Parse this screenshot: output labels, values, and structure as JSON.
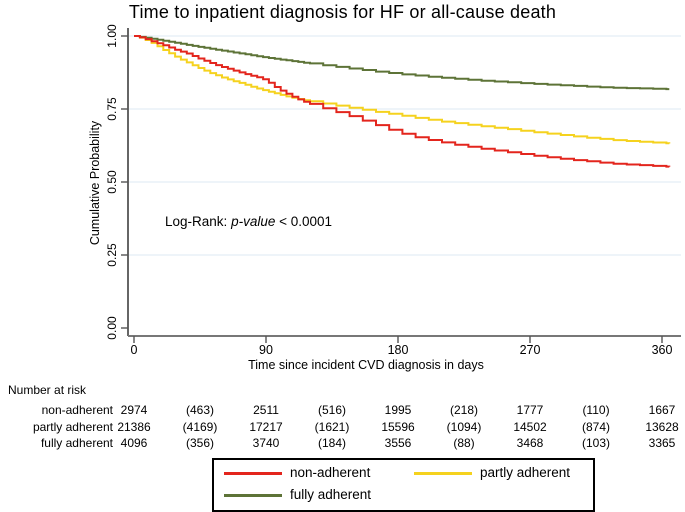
{
  "chart_data": {
    "type": "line",
    "subtype": "kaplan-meier",
    "title": "Time to inpatient diagnosis for HF or all-cause death",
    "xlabel": "Time since incident CVD diagnosis in days",
    "ylabel": "Cumulative Probability",
    "xlim": [
      0,
      372
    ],
    "ylim": [
      0.0,
      1.0
    ],
    "grid": "horizontal-light-blue",
    "gridline_color": "#e3edf5",
    "x_ticks": {
      "values": [
        0,
        90,
        180,
        270,
        360
      ],
      "labels": [
        "0",
        "90",
        "180",
        "270",
        "360"
      ]
    },
    "y_ticks": {
      "values": [
        0,
        0.25,
        0.5,
        0.75,
        1.0
      ],
      "labels": [
        "0.00",
        "0.25",
        "0.50",
        "0.75",
        "1.00"
      ]
    },
    "annotation": {
      "prefix": "Log-Rank:",
      "italic": "p-value",
      "suffix": "< 0.0001"
    },
    "legend_position": "bottom",
    "series": [
      {
        "name": "non-adherent",
        "color": "#e3251d",
        "points": [
          [
            0,
            1.0
          ],
          [
            6,
            0.993
          ],
          [
            12,
            0.982
          ],
          [
            20,
            0.968
          ],
          [
            28,
            0.953
          ],
          [
            36,
            0.94
          ],
          [
            45,
            0.921
          ],
          [
            55,
            0.902
          ],
          [
            65,
            0.886
          ],
          [
            75,
            0.871
          ],
          [
            85,
            0.857
          ],
          [
            90,
            0.849
          ],
          [
            93,
            0.835
          ],
          [
            97,
            0.822
          ],
          [
            101,
            0.81
          ],
          [
            106,
            0.797
          ],
          [
            111,
            0.785
          ],
          [
            118,
            0.771
          ],
          [
            126,
            0.757
          ],
          [
            135,
            0.744
          ],
          [
            145,
            0.729
          ],
          [
            155,
            0.712
          ],
          [
            165,
            0.695
          ],
          [
            175,
            0.677
          ],
          [
            190,
            0.655
          ],
          [
            205,
            0.64
          ],
          [
            220,
            0.627
          ],
          [
            238,
            0.613
          ],
          [
            255,
            0.602
          ],
          [
            270,
            0.592
          ],
          [
            285,
            0.583
          ],
          [
            300,
            0.575
          ],
          [
            315,
            0.568
          ],
          [
            330,
            0.561
          ],
          [
            345,
            0.558
          ],
          [
            365,
            0.552
          ]
        ]
      },
      {
        "name": "partly adherent",
        "color": "#f5d21e",
        "points": [
          [
            0,
            1.0
          ],
          [
            5,
            0.993
          ],
          [
            10,
            0.982
          ],
          [
            15,
            0.968
          ],
          [
            20,
            0.952
          ],
          [
            25,
            0.938
          ],
          [
            30,
            0.924
          ],
          [
            38,
            0.905
          ],
          [
            45,
            0.888
          ],
          [
            52,
            0.873
          ],
          [
            60,
            0.858
          ],
          [
            68,
            0.845
          ],
          [
            75,
            0.835
          ],
          [
            82,
            0.823
          ],
          [
            90,
            0.812
          ],
          [
            98,
            0.801
          ],
          [
            105,
            0.792
          ],
          [
            115,
            0.781
          ],
          [
            125,
            0.772
          ],
          [
            135,
            0.764
          ],
          [
            150,
            0.752
          ],
          [
            165,
            0.74
          ],
          [
            180,
            0.729
          ],
          [
            195,
            0.717
          ],
          [
            210,
            0.707
          ],
          [
            225,
            0.698
          ],
          [
            240,
            0.689
          ],
          [
            255,
            0.681
          ],
          [
            270,
            0.672
          ],
          [
            285,
            0.664
          ],
          [
            300,
            0.656
          ],
          [
            315,
            0.649
          ],
          [
            330,
            0.642
          ],
          [
            345,
            0.638
          ],
          [
            365,
            0.632
          ]
        ]
      },
      {
        "name": "fully adherent",
        "color": "#5d7337",
        "points": [
          [
            0,
            1.0
          ],
          [
            8,
            0.994
          ],
          [
            15,
            0.988
          ],
          [
            22,
            0.982
          ],
          [
            30,
            0.975
          ],
          [
            40,
            0.966
          ],
          [
            50,
            0.958
          ],
          [
            60,
            0.95
          ],
          [
            70,
            0.942
          ],
          [
            80,
            0.934
          ],
          [
            90,
            0.926
          ],
          [
            105,
            0.916
          ],
          [
            120,
            0.906
          ],
          [
            135,
            0.896
          ],
          [
            150,
            0.887
          ],
          [
            165,
            0.878
          ],
          [
            180,
            0.87
          ],
          [
            200,
            0.861
          ],
          [
            220,
            0.853
          ],
          [
            240,
            0.846
          ],
          [
            260,
            0.84
          ],
          [
            280,
            0.834
          ],
          [
            300,
            0.829
          ],
          [
            320,
            0.824
          ],
          [
            340,
            0.821
          ],
          [
            365,
            0.818
          ]
        ]
      }
    ]
  },
  "risk_table": {
    "header": "Number at risk",
    "rows": [
      {
        "label": "non-adherent",
        "values": [
          "2974",
          "(463)",
          "2511",
          "(516)",
          "1995",
          "(218)",
          "1777",
          "(110)",
          "1667"
        ]
      },
      {
        "label": "partly adherent",
        "values": [
          "21386",
          "(4169)",
          "17217",
          "(1621)",
          "15596",
          "(1094)",
          "14502",
          "(874)",
          "13628"
        ]
      },
      {
        "label": "fully adherent",
        "values": [
          "4096",
          "(356)",
          "3740",
          "(184)",
          "3556",
          "(88)",
          "3468",
          "(103)",
          "3365"
        ]
      }
    ]
  },
  "legend": {
    "entries": [
      {
        "label": "non-adherent",
        "color": "#e3251d"
      },
      {
        "label": "partly adherent",
        "color": "#f5d21e"
      },
      {
        "label": "fully adherent",
        "color": "#5d7337"
      }
    ]
  }
}
